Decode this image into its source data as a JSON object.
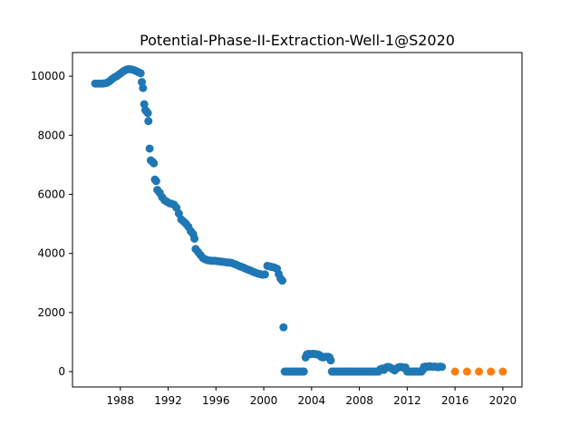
{
  "chart_data": {
    "type": "scatter",
    "title": "Potential-Phase-II-Extraction-Well-1@S2020",
    "xlabel": "",
    "ylabel": "",
    "xlim": [
      1984.0,
      2021.6
    ],
    "ylim": [
      -520,
      10800
    ],
    "x_ticks": [
      1988,
      1992,
      1996,
      2000,
      2004,
      2008,
      2012,
      2016,
      2020
    ],
    "y_ticks": [
      0,
      2000,
      4000,
      6000,
      8000,
      10000
    ],
    "grid": false,
    "legend": "none",
    "series": [
      {
        "color": "#1f77b4",
        "points": [
          [
            1985.9,
            9750
          ],
          [
            1986.1,
            9750
          ],
          [
            1986.3,
            9750
          ],
          [
            1986.5,
            9750
          ],
          [
            1986.7,
            9760
          ],
          [
            1986.9,
            9780
          ],
          [
            1987.1,
            9830
          ],
          [
            1987.3,
            9900
          ],
          [
            1987.5,
            9960
          ],
          [
            1987.7,
            10000
          ],
          [
            1987.9,
            10060
          ],
          [
            1988.1,
            10120
          ],
          [
            1988.3,
            10180
          ],
          [
            1988.5,
            10220
          ],
          [
            1988.7,
            10240
          ],
          [
            1988.9,
            10230
          ],
          [
            1989.1,
            10210
          ],
          [
            1989.3,
            10180
          ],
          [
            1989.5,
            10140
          ],
          [
            1989.7,
            10100
          ],
          [
            1989.8,
            9800
          ],
          [
            1989.9,
            9600
          ],
          [
            1990.0,
            9050
          ],
          [
            1990.1,
            8850
          ],
          [
            1990.2,
            8800
          ],
          [
            1990.3,
            8750
          ],
          [
            1990.35,
            8480
          ],
          [
            1990.45,
            7550
          ],
          [
            1990.55,
            7150
          ],
          [
            1990.7,
            7100
          ],
          [
            1990.8,
            7050
          ],
          [
            1990.9,
            6500
          ],
          [
            1991.0,
            6450
          ],
          [
            1991.1,
            6150
          ],
          [
            1991.3,
            6050
          ],
          [
            1991.5,
            5900
          ],
          [
            1991.7,
            5800
          ],
          [
            1991.9,
            5750
          ],
          [
            1992.1,
            5700
          ],
          [
            1992.3,
            5680
          ],
          [
            1992.5,
            5650
          ],
          [
            1992.7,
            5550
          ],
          [
            1992.9,
            5350
          ],
          [
            1993.1,
            5150
          ],
          [
            1993.3,
            5080
          ],
          [
            1993.5,
            5000
          ],
          [
            1993.7,
            4900
          ],
          [
            1993.9,
            4750
          ],
          [
            1994.1,
            4650
          ],
          [
            1994.2,
            4500
          ],
          [
            1994.3,
            4150
          ],
          [
            1994.5,
            4050
          ],
          [
            1994.7,
            3950
          ],
          [
            1994.9,
            3850
          ],
          [
            1995.1,
            3800
          ],
          [
            1995.3,
            3770
          ],
          [
            1995.5,
            3760
          ],
          [
            1995.7,
            3750
          ],
          [
            1995.9,
            3750
          ],
          [
            1996.1,
            3740
          ],
          [
            1996.3,
            3730
          ],
          [
            1996.5,
            3720
          ],
          [
            1996.7,
            3710
          ],
          [
            1996.9,
            3700
          ],
          [
            1997.1,
            3690
          ],
          [
            1997.3,
            3680
          ],
          [
            1997.5,
            3650
          ],
          [
            1997.7,
            3620
          ],
          [
            1997.9,
            3580
          ],
          [
            1998.1,
            3550
          ],
          [
            1998.3,
            3520
          ],
          [
            1998.5,
            3480
          ],
          [
            1998.7,
            3450
          ],
          [
            1998.9,
            3420
          ],
          [
            1999.1,
            3380
          ],
          [
            1999.3,
            3350
          ],
          [
            1999.5,
            3320
          ],
          [
            1999.7,
            3300
          ],
          [
            1999.9,
            3280
          ],
          [
            2000.1,
            3290
          ],
          [
            2000.3,
            3580
          ],
          [
            2000.5,
            3560
          ],
          [
            2000.7,
            3540
          ],
          [
            2000.9,
            3520
          ],
          [
            2001.1,
            3480
          ],
          [
            2001.25,
            3300
          ],
          [
            2001.4,
            3150
          ],
          [
            2001.55,
            3080
          ],
          [
            2001.65,
            1500
          ],
          [
            2001.75,
            0
          ],
          [
            2001.9,
            0
          ],
          [
            2002.05,
            0
          ],
          [
            2002.2,
            0
          ],
          [
            2002.35,
            0
          ],
          [
            2002.5,
            0
          ],
          [
            2002.65,
            0
          ],
          [
            2002.8,
            0
          ],
          [
            2002.95,
            0
          ],
          [
            2003.1,
            0
          ],
          [
            2003.25,
            0
          ],
          [
            2003.35,
            0
          ],
          [
            2003.5,
            480
          ],
          [
            2003.6,
            580
          ],
          [
            2003.75,
            600
          ],
          [
            2003.9,
            590
          ],
          [
            2004.05,
            600
          ],
          [
            2004.2,
            600
          ],
          [
            2004.35,
            590
          ],
          [
            2004.5,
            580
          ],
          [
            2004.65,
            560
          ],
          [
            2004.8,
            500
          ],
          [
            2004.95,
            480
          ],
          [
            2005.1,
            500
          ],
          [
            2005.25,
            500
          ],
          [
            2005.4,
            500
          ],
          [
            2005.5,
            480
          ],
          [
            2005.6,
            380
          ],
          [
            2005.7,
            0
          ],
          [
            2005.85,
            0
          ],
          [
            2006.0,
            0
          ],
          [
            2006.15,
            0
          ],
          [
            2006.3,
            0
          ],
          [
            2006.45,
            0
          ],
          [
            2006.6,
            0
          ],
          [
            2006.75,
            0
          ],
          [
            2006.9,
            0
          ],
          [
            2007.05,
            0
          ],
          [
            2007.2,
            0
          ],
          [
            2007.35,
            0
          ],
          [
            2007.5,
            0
          ],
          [
            2007.65,
            0
          ],
          [
            2007.8,
            0
          ],
          [
            2007.95,
            0
          ],
          [
            2008.1,
            0
          ],
          [
            2008.25,
            0
          ],
          [
            2008.4,
            0
          ],
          [
            2008.55,
            0
          ],
          [
            2008.7,
            0
          ],
          [
            2008.85,
            0
          ],
          [
            2009.0,
            0
          ],
          [
            2009.15,
            0
          ],
          [
            2009.3,
            0
          ],
          [
            2009.45,
            0
          ],
          [
            2009.6,
            0
          ],
          [
            2009.75,
            80
          ],
          [
            2009.9,
            100
          ],
          [
            2010.05,
            60
          ],
          [
            2010.2,
            130
          ],
          [
            2010.35,
            160
          ],
          [
            2010.5,
            150
          ],
          [
            2010.65,
            120
          ],
          [
            2010.8,
            80
          ],
          [
            2010.95,
            40
          ],
          [
            2011.1,
            100
          ],
          [
            2011.25,
            140
          ],
          [
            2011.4,
            160
          ],
          [
            2011.55,
            150
          ],
          [
            2011.7,
            130
          ],
          [
            2011.85,
            140
          ],
          [
            2012.0,
            0
          ],
          [
            2012.15,
            0
          ],
          [
            2012.3,
            0
          ],
          [
            2012.45,
            0
          ],
          [
            2012.6,
            0
          ],
          [
            2012.75,
            0
          ],
          [
            2012.9,
            0
          ],
          [
            2013.05,
            0
          ],
          [
            2013.2,
            0
          ],
          [
            2013.3,
            60
          ],
          [
            2013.4,
            160
          ],
          [
            2013.55,
            170
          ],
          [
            2013.7,
            160
          ],
          [
            2013.85,
            180
          ],
          [
            2014.0,
            170
          ],
          [
            2014.15,
            160
          ],
          [
            2014.3,
            170
          ],
          [
            2014.45,
            160
          ],
          [
            2014.6,
            150
          ],
          [
            2014.75,
            170
          ],
          [
            2014.9,
            160
          ]
        ]
      },
      {
        "color": "#ff7f0e",
        "points": [
          [
            2016.0,
            0
          ],
          [
            2017.0,
            0
          ],
          [
            2018.0,
            0
          ],
          [
            2019.0,
            0
          ],
          [
            2020.0,
            0
          ]
        ]
      }
    ]
  }
}
